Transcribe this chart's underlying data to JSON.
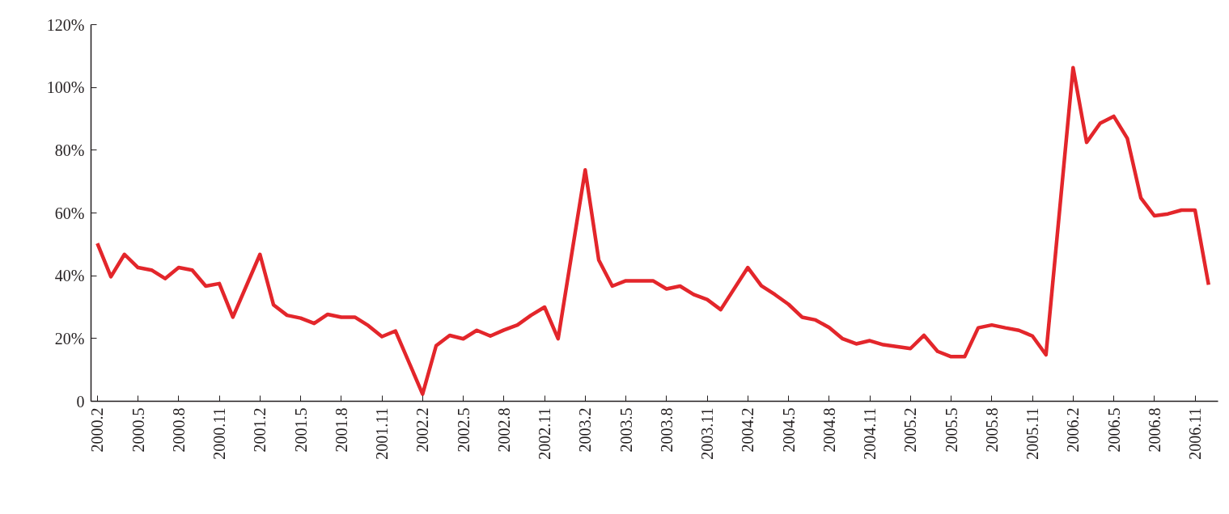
{
  "chart_data": {
    "type": "line",
    "x": [
      "2000-02",
      "2000-03",
      "2000-04",
      "2000-05",
      "2000-06",
      "2000-07",
      "2000-08",
      "2000-09",
      "2000-10",
      "2000-11",
      "2000-12",
      "2001-02",
      "2001-03",
      "2001-04",
      "2001-05",
      "2001-06",
      "2001-07",
      "2001-08",
      "2001-09",
      "2001-10",
      "2001-11",
      "2001-12",
      "2002-02",
      "2002-03",
      "2002-04",
      "2002-05",
      "2002-06",
      "2002-07",
      "2002-08",
      "2002-09",
      "2002-10",
      "2002-11",
      "2002-12",
      "2003-02",
      "2003-03",
      "2003-04",
      "2003-05",
      "2003-06",
      "2003-07",
      "2003-08",
      "2003-09",
      "2003-10",
      "2003-11",
      "2003-12",
      "2004-02",
      "2004-03",
      "2004-04",
      "2004-05",
      "2004-06",
      "2004-07",
      "2004-08",
      "2004-09",
      "2004-10",
      "2004-11",
      "2004-12",
      "2005-02",
      "2005-03",
      "2005-04",
      "2005-05",
      "2005-06",
      "2005-07",
      "2005-08",
      "2005-09",
      "2005-10",
      "2005-11",
      "2005-12",
      "2006-02",
      "2006-03",
      "2006-04",
      "2006-05",
      "2006-06",
      "2006-07",
      "2006-08",
      "2006-09",
      "2006-10",
      "2006-11",
      "2006-12"
    ],
    "series": [
      {
        "color": "#e3262b",
        "values": [
          50.3,
          39.7,
          46.8,
          42.6,
          41.8,
          39.1,
          42.6,
          41.8,
          36.7,
          37.5,
          26.8,
          46.8,
          30.7,
          27.4,
          26.5,
          24.8,
          27.7,
          26.8,
          26.8,
          24.1,
          20.6,
          22.4,
          2.3,
          17.7,
          21.0,
          19.9,
          22.6,
          20.8,
          22.7,
          24.3,
          27.4,
          30.0,
          19.9,
          73.7,
          45.0,
          36.7,
          38.4,
          38.4,
          38.4,
          35.8,
          36.7,
          34.0,
          32.4,
          29.2,
          42.6,
          36.8,
          34.0,
          30.9,
          26.8,
          25.9,
          23.5,
          19.9,
          18.3,
          19.3,
          18.0,
          16.8,
          21.0,
          15.9,
          14.2,
          14.2,
          23.4,
          24.3,
          23.4,
          22.6,
          20.8,
          14.8,
          106.3,
          82.5,
          88.6,
          90.8,
          83.8,
          64.8,
          59.1,
          59.7,
          60.9,
          60.9,
          37.1
        ]
      }
    ],
    "xlim": [
      "2000-01-17",
      "2006-12-22"
    ],
    "xticks": [
      {
        "value": "2000-02",
        "label": "2000.2"
      },
      {
        "value": "2000-05",
        "label": "2000.5"
      },
      {
        "value": "2000-08",
        "label": "2000.8"
      },
      {
        "value": "2000-11",
        "label": "2000.11"
      },
      {
        "value": "2001-02",
        "label": "2001.2"
      },
      {
        "value": "2001-05",
        "label": "2001.5"
      },
      {
        "value": "2001-08",
        "label": "2001.8"
      },
      {
        "value": "2001-11",
        "label": "2001.11"
      },
      {
        "value": "2002-02",
        "label": "2002.2"
      },
      {
        "value": "2002-05",
        "label": "2002.5"
      },
      {
        "value": "2002-08",
        "label": "2002.8"
      },
      {
        "value": "2002-11",
        "label": "2002.11"
      },
      {
        "value": "2003-02",
        "label": "2003.2"
      },
      {
        "value": "2003-05",
        "label": "2003.5"
      },
      {
        "value": "2003-08",
        "label": "2003.8"
      },
      {
        "value": "2003-11",
        "label": "2003.11"
      },
      {
        "value": "2004-02",
        "label": "2004.2"
      },
      {
        "value": "2004-05",
        "label": "2004.5"
      },
      {
        "value": "2004-08",
        "label": "2004.8"
      },
      {
        "value": "2004-11",
        "label": "2004.11"
      },
      {
        "value": "2005-02",
        "label": "2005.2"
      },
      {
        "value": "2005-05",
        "label": "2005.5"
      },
      {
        "value": "2005-08",
        "label": "2005.8"
      },
      {
        "value": "2005-11",
        "label": "2005.11"
      },
      {
        "value": "2006-02",
        "label": "2006.2"
      },
      {
        "value": "2006-05",
        "label": "2006.5"
      },
      {
        "value": "2006-08",
        "label": "2006.8"
      },
      {
        "value": "2006-11",
        "label": "2006.11"
      }
    ],
    "ylim": [
      0,
      120
    ],
    "yticks": [
      {
        "value": 0,
        "label": "0"
      },
      {
        "value": 20,
        "label": "20%"
      },
      {
        "value": 40,
        "label": "40%"
      },
      {
        "value": 60,
        "label": "60%"
      },
      {
        "value": 80,
        "label": "80%"
      },
      {
        "value": 100,
        "label": "100%"
      },
      {
        "value": 120,
        "label": "120%"
      }
    ],
    "grid": false
  }
}
